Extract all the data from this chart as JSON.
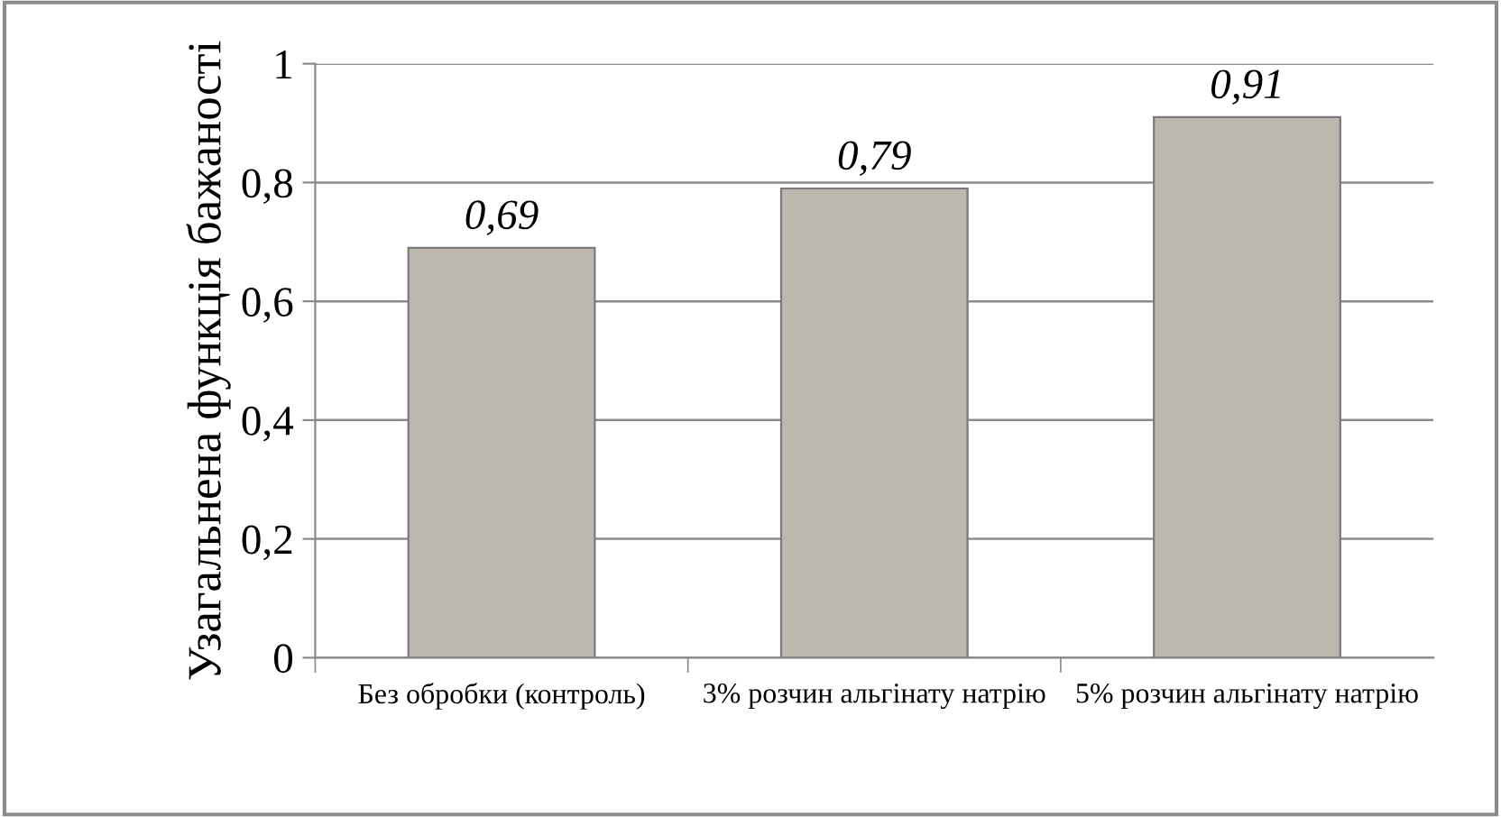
{
  "chart_data": {
    "type": "bar",
    "ylabel": "Узагальнена функція бажаності",
    "categories": [
      "Без обробки (контроль)",
      "3% розчин альгінату натрію",
      "5% розчин альгінату натрію"
    ],
    "values": [
      0.69,
      0.79,
      0.91
    ],
    "value_labels": [
      "0,69",
      "0,79",
      "0,91"
    ],
    "color": "#bcb8b0",
    "ylim": [
      0,
      1
    ],
    "yticks": [
      0,
      {
        "value": 0.2,
        "label": "0,2"
      },
      {
        "value": 0.4,
        "label": "0,4"
      },
      {
        "value": 0.6,
        "label": "0,6"
      },
      {
        "value": 0.8,
        "label": "0,8"
      },
      1
    ],
    "grid": "y",
    "legend": false
  }
}
